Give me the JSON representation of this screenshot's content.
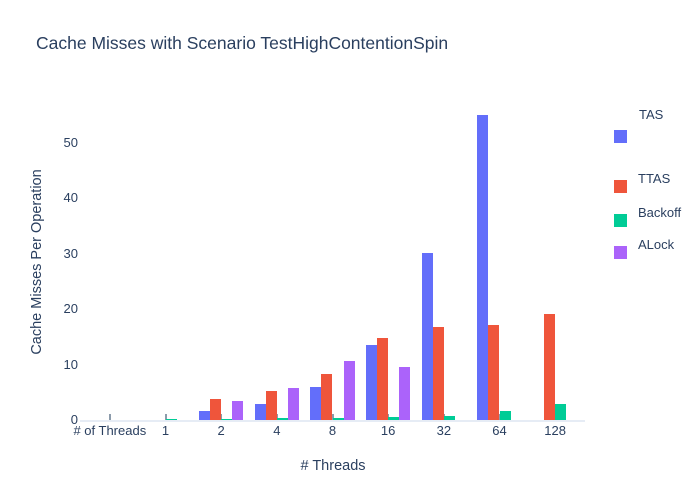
{
  "title": "Cache Misses with Scenario TestHighContentionSpin",
  "chart_data": {
    "type": "bar",
    "title": "Cache Misses with Scenario TestHighContentionSpin",
    "xlabel": "# Threads",
    "ylabel": "Cache Misses Per Operation",
    "categories": [
      "# of Threads",
      "1",
      "2",
      "4",
      "8",
      "16",
      "32",
      "64",
      "128"
    ],
    "yticks": [
      0,
      10,
      20,
      30,
      40,
      50
    ],
    "ylim": [
      0,
      55.9
    ],
    "grid": false,
    "legend_position": "right",
    "series": [
      {
        "name": "TAS",
        "color": "#636EFA",
        "values": [
          0,
          0,
          1.6,
          2.8,
          5.9,
          13.5,
          30,
          55,
          null
        ]
      },
      {
        "name": "TTAS",
        "color": "#EF553B",
        "values": [
          0,
          0,
          3.7,
          5.3,
          8.2,
          14.7,
          16.8,
          17.2,
          19.1
        ]
      },
      {
        "name": "Backoff",
        "color": "#00CC96",
        "values": [
          0,
          0.2,
          0.25,
          0.3,
          0.4,
          0.5,
          0.8,
          1.6,
          2.9
        ]
      },
      {
        "name": "ALock",
        "color": "#AB63FA",
        "values": [
          0,
          0,
          3.5,
          5.8,
          10.6,
          9.6,
          null,
          null,
          null
        ]
      }
    ]
  },
  "colors": {
    "text": "#2a3f5f",
    "axis_line": "#e6ecf5",
    "tick_mark": "#8c9bab",
    "background": "#ffffff"
  }
}
